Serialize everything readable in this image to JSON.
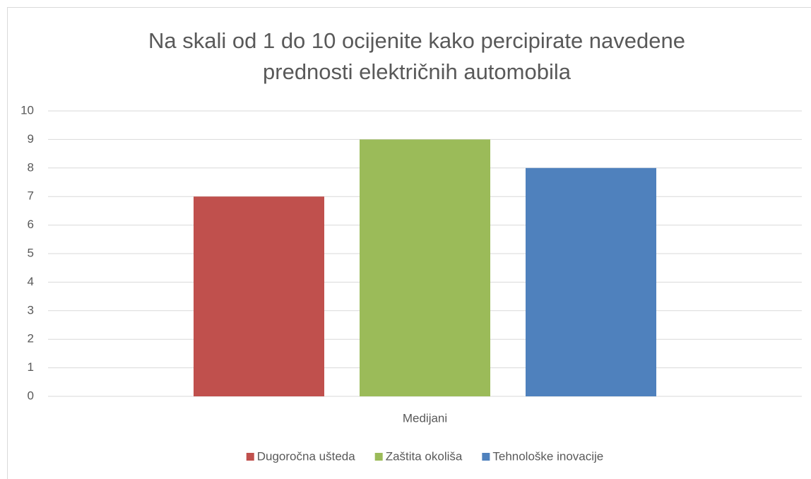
{
  "chart_data": {
    "type": "bar",
    "title": [
      "Na skali od 1 do 10 ocijenite kako percipirate navedene",
      "prednosti električnih automobila"
    ],
    "categories": [
      "Medijani"
    ],
    "series": [
      {
        "name": "Dugoročna ušteda",
        "color": "#c0504d",
        "values": [
          7
        ]
      },
      {
        "name": "Zaštita okoliša",
        "color": "#9bbb59",
        "values": [
          9
        ]
      },
      {
        "name": "Tehnološke inovacije",
        "color": "#4f81bd",
        "values": [
          8
        ]
      }
    ],
    "ylim": [
      0,
      10
    ],
    "yticks": [
      0,
      1,
      2,
      3,
      4,
      5,
      6,
      7,
      8,
      9,
      10
    ],
    "grid": true,
    "legend": "bottom"
  }
}
